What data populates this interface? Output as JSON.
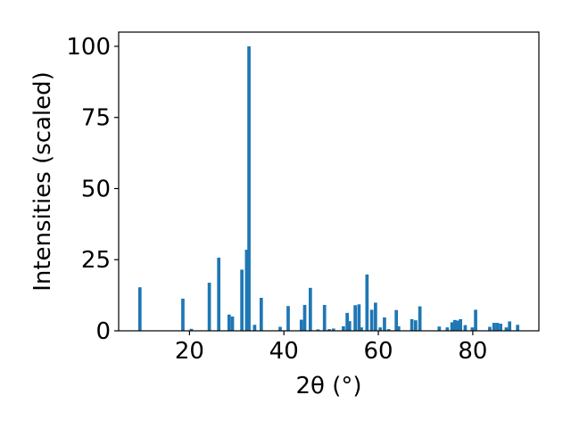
{
  "chart_data": {
    "type": "bar",
    "xlabel": "2θ (°)",
    "ylabel": "Intensities (scaled)",
    "xlim": [
      5,
      94
    ],
    "ylim": [
      0,
      105
    ],
    "xticks": [
      20,
      40,
      60,
      80
    ],
    "yticks": [
      0,
      25,
      50,
      75,
      100
    ],
    "bar_width": 0.7,
    "bar_color": "#1f77b4",
    "grid": false,
    "legend": "none",
    "x": [
      9.5,
      18.6,
      20.4,
      24.2,
      26.2,
      28.4,
      29.1,
      31.1,
      32.1,
      32.6,
      33.8,
      35.2,
      39.2,
      40.9,
      43.7,
      44.4,
      45.6,
      47.2,
      48.6,
      49.6,
      50.5,
      52.6,
      53.4,
      53.9,
      55.1,
      55.9,
      56.4,
      57.6,
      58.6,
      59.4,
      60.4,
      61.3,
      62.2,
      63.8,
      64.3,
      67.1,
      67.9,
      68.8,
      72.9,
      74.6,
      75.6,
      76.2,
      76.8,
      77.4,
      78.4,
      79.9,
      80.6,
      83.6,
      84.5,
      85.2,
      85.9,
      87.1,
      87.8,
      89.5
    ],
    "y": [
      15.3,
      11.3,
      0.7,
      16.9,
      25.7,
      5.7,
      5.0,
      21.5,
      28.5,
      100,
      2.1,
      11.6,
      1.4,
      8.7,
      3.9,
      9.1,
      15.1,
      0.5,
      9.1,
      0.6,
      0.8,
      1.6,
      6.3,
      3.4,
      9.0,
      9.3,
      1.2,
      19.8,
      7.4,
      9.9,
      1.2,
      4.7,
      0.6,
      7.3,
      1.6,
      4.1,
      3.7,
      8.6,
      1.5,
      1.2,
      3.0,
      3.8,
      3.6,
      4.1,
      2.0,
      1.2,
      7.4,
      1.4,
      2.8,
      2.8,
      2.5,
      1.2,
      3.3,
      2.1
    ]
  }
}
